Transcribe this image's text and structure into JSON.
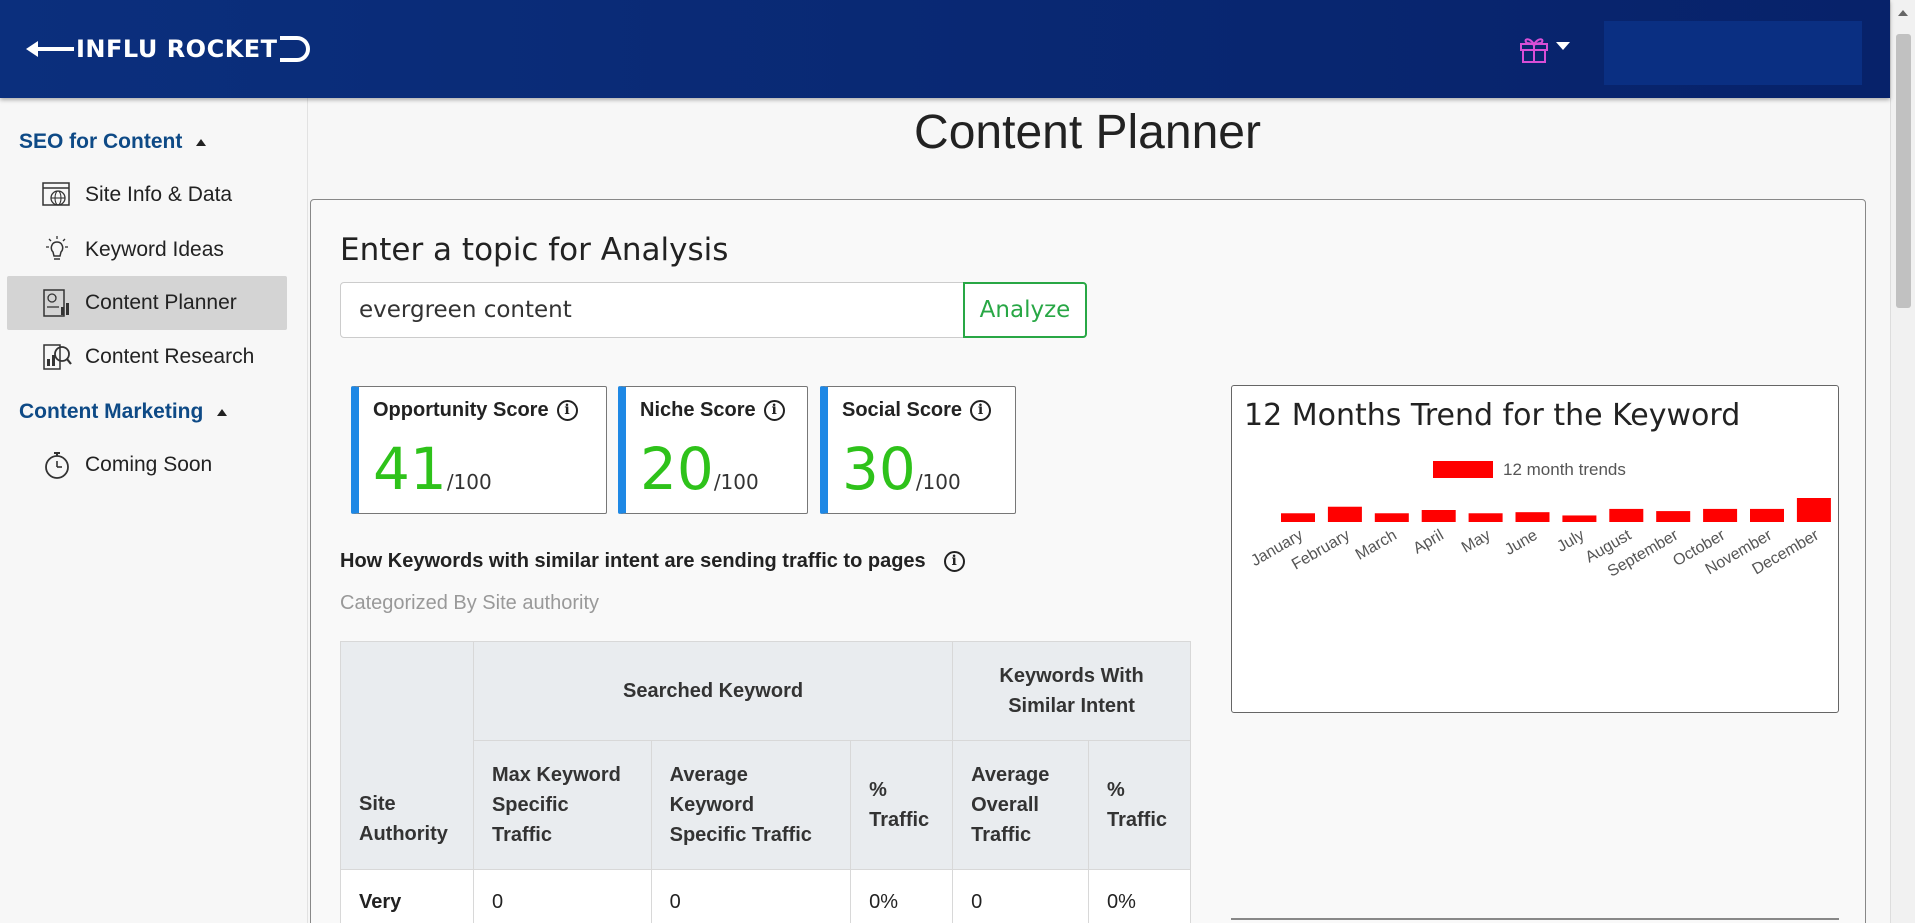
{
  "header": {
    "logo_text": "INFLU ROCKET"
  },
  "sidebar": {
    "sections": [
      {
        "label": "SEO for Content"
      },
      {
        "label": "Content Marketing"
      }
    ],
    "items": [
      {
        "label": "Site Info & Data"
      },
      {
        "label": "Keyword Ideas"
      },
      {
        "label": "Content Planner"
      },
      {
        "label": "Content Research"
      },
      {
        "label": "Coming Soon"
      }
    ]
  },
  "main": {
    "page_title": "Content Planner",
    "topic_heading": "Enter a topic for Analysis",
    "topic_input_value": "evergreen content",
    "analyze_label": "Analyze",
    "scores": [
      {
        "title": "Opportunity Score",
        "value": "41",
        "max": "/100"
      },
      {
        "title": "Niche Score",
        "value": "20",
        "max": "/100"
      },
      {
        "title": "Social Score",
        "value": "30",
        "max": "/100"
      }
    ],
    "traffic_heading": "How Keywords with similar intent are sending traffic to pages",
    "traffic_sub": "Categorized By Site authority",
    "table": {
      "group_headers": [
        "Searched Keyword",
        "Keywords With Similar Intent"
      ],
      "columns": [
        "Site Authority",
        "Max Keyword Specific Traffic",
        "Average Keyword Specific Traffic",
        "% Traffic",
        "Average Overall Traffic",
        "% Traffic"
      ],
      "rows": [
        [
          "Very",
          "0",
          "0",
          "0%",
          "0",
          "0%"
        ]
      ]
    }
  },
  "trend": {
    "title": "12 Months Trend for the Keyword",
    "legend": "12 month trends",
    "bar_color": "#ff0000"
  },
  "chart_data": {
    "type": "bar",
    "title": "12 Months Trend for the Keyword",
    "categories": [
      "January",
      "February",
      "March",
      "April",
      "May",
      "June",
      "July",
      "August",
      "September",
      "October",
      "November",
      "December"
    ],
    "series": [
      {
        "name": "12 month trends",
        "values": [
          40,
          70,
          40,
          55,
          40,
          45,
          30,
          60,
          50,
          60,
          60,
          110
        ]
      }
    ],
    "legend_position": "top-center",
    "grid": false
  }
}
